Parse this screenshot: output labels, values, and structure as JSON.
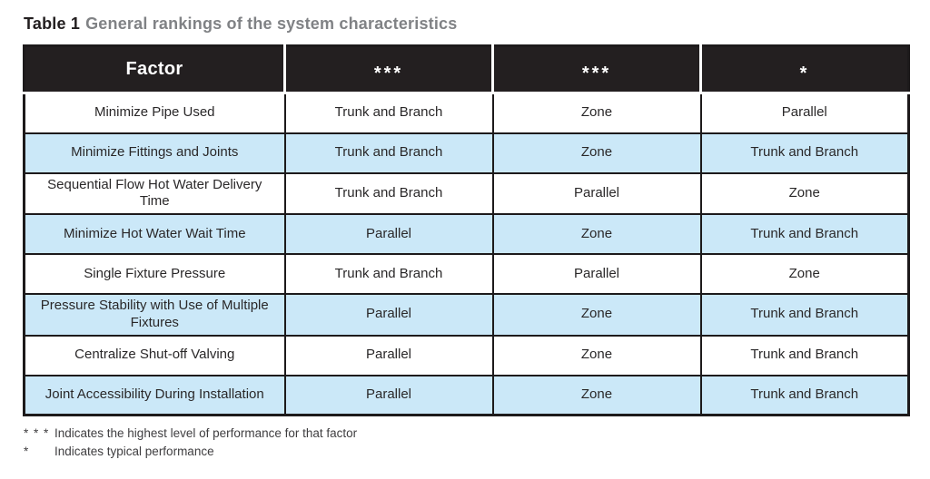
{
  "page": {
    "title_prefix": "Table 1",
    "title_text": "General rankings of the system characteristics"
  },
  "table": {
    "headers": [
      {
        "label": "Factor"
      },
      {
        "label": "***"
      },
      {
        "label": "***"
      },
      {
        "label": "*"
      }
    ],
    "rows": [
      {
        "factor": "Minimize Pipe Used",
        "rank1": "Trunk and Branch",
        "rank2": "Zone",
        "rank3": "Parallel"
      },
      {
        "factor": "Minimize Fittings and Joints",
        "rank1": "Trunk and Branch",
        "rank2": "Zone",
        "rank3": "Trunk and Branch"
      },
      {
        "factor": "Sequential Flow Hot Water Delivery Time",
        "rank1": "Trunk and Branch",
        "rank2": "Parallel",
        "rank3": "Zone"
      },
      {
        "factor": "Minimize Hot Water Wait Time",
        "rank1": "Parallel",
        "rank2": "Zone",
        "rank3": "Trunk and Branch"
      },
      {
        "factor": "Single Fixture Pressure",
        "rank1": "Trunk and Branch",
        "rank2": "Parallel",
        "rank3": "Zone"
      },
      {
        "factor": "Pressure Stability with Use of Multiple Fixtures",
        "rank1": "Parallel",
        "rank2": "Zone",
        "rank3": "Trunk and Branch"
      },
      {
        "factor": "Centralize Shut-off Valving",
        "rank1": "Parallel",
        "rank2": "Zone",
        "rank3": "Trunk and Branch"
      },
      {
        "factor": "Joint Accessibility During Installation",
        "rank1": "Parallel",
        "rank2": "Zone",
        "rank3": "Trunk and Branch"
      }
    ]
  },
  "footnotes": [
    {
      "symbol": "* * *",
      "text": "Indicates the highest level of performance for that factor"
    },
    {
      "symbol": "*",
      "text": "Indicates typical performance"
    }
  ],
  "colors": {
    "header_bg": "#231f20",
    "alt_row_bg": "#cbe8f8",
    "border": "#1d1a1b",
    "title_gray": "#808285"
  }
}
